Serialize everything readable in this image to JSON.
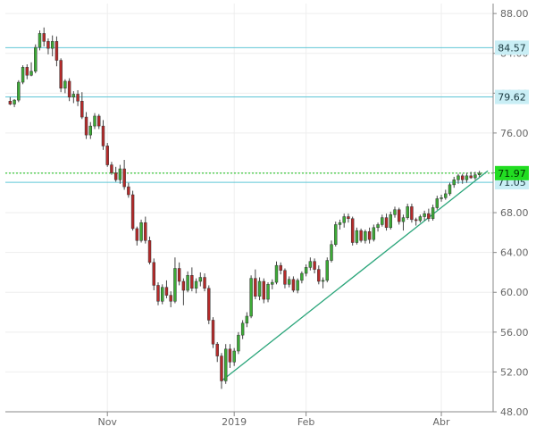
{
  "chart_data": {
    "type": "candlestick",
    "y_axis": {
      "side": "right",
      "ticks": [
        "88.00",
        "84.00",
        "80.00",
        "76.00",
        "72.00",
        "68.00",
        "64.00",
        "60.00",
        "56.00",
        "52.00",
        "48.00"
      ],
      "ylim": [
        48,
        89
      ]
    },
    "x_axis": {
      "ticks": [
        {
          "label": "Nov",
          "index": 23
        },
        {
          "label": "2019",
          "index": 53
        },
        {
          "label": "Feb",
          "index": 70
        },
        {
          "label": "Abr",
          "index": 102
        }
      ]
    },
    "grid": true,
    "colors": {
      "up": "#3caa36",
      "down": "#b52a2a",
      "level_line": "#5fc6d6",
      "trendline": "#2aa57a",
      "current_line": "#11c011",
      "grid": "#eeeeee",
      "axis": "#888888",
      "text": "#666666"
    },
    "horizontal_levels": [
      {
        "label": "84.57",
        "value": 84.57
      },
      {
        "label": "79.62",
        "value": 79.62
      },
      {
        "label": "71.05",
        "value": 71.05
      }
    ],
    "current_price": {
      "label": "71.97",
      "value": 71.97
    },
    "trendline": {
      "from": {
        "index": 50,
        "value": 51.1
      },
      "to": {
        "index": 113,
        "value": 72.2
      }
    },
    "candles": [
      [
        79.2,
        79.6,
        78.8,
        78.9
      ],
      [
        78.9,
        79.4,
        78.6,
        79.3
      ],
      [
        79.3,
        81.3,
        79.1,
        81.1
      ],
      [
        81.1,
        82.8,
        80.9,
        82.6
      ],
      [
        82.6,
        82.9,
        81.4,
        81.8
      ],
      [
        81.8,
        83.1,
        81.7,
        82.2
      ],
      [
        82.2,
        84.9,
        82.0,
        84.6
      ],
      [
        84.6,
        86.3,
        84.3,
        86.0
      ],
      [
        86.0,
        86.6,
        84.7,
        85.2
      ],
      [
        85.2,
        85.5,
        83.9,
        84.5
      ],
      [
        84.5,
        85.8,
        83.7,
        85.2
      ],
      [
        85.2,
        85.7,
        82.7,
        83.3
      ],
      [
        83.3,
        83.5,
        80.1,
        80.5
      ],
      [
        80.5,
        81.4,
        80.0,
        81.2
      ],
      [
        81.2,
        81.5,
        79.2,
        79.6
      ],
      [
        79.6,
        80.2,
        79.0,
        79.9
      ],
      [
        79.9,
        80.3,
        78.7,
        79.2
      ],
      [
        79.2,
        80.1,
        77.4,
        77.6
      ],
      [
        77.6,
        78.1,
        75.4,
        75.8
      ],
      [
        75.8,
        77.1,
        75.4,
        76.7
      ],
      [
        76.7,
        78.0,
        76.4,
        77.7
      ],
      [
        77.7,
        77.9,
        76.4,
        76.7
      ],
      [
        76.7,
        77.3,
        74.3,
        74.7
      ],
      [
        74.7,
        75.0,
        72.6,
        72.8
      ],
      [
        72.8,
        73.1,
        71.8,
        72.0
      ],
      [
        72.0,
        72.6,
        71.1,
        71.3
      ],
      [
        71.3,
        72.8,
        70.9,
        72.4
      ],
      [
        72.4,
        73.3,
        70.3,
        70.6
      ],
      [
        70.6,
        71.0,
        69.5,
        69.8
      ],
      [
        69.8,
        70.2,
        66.2,
        66.4
      ],
      [
        66.4,
        66.6,
        64.7,
        65.2
      ],
      [
        65.2,
        67.3,
        65.0,
        67.0
      ],
      [
        67.0,
        67.6,
        64.9,
        65.2
      ],
      [
        65.2,
        65.6,
        62.8,
        63.0
      ],
      [
        63.0,
        63.4,
        60.2,
        60.7
      ],
      [
        60.7,
        61.0,
        58.7,
        59.1
      ],
      [
        59.1,
        60.8,
        58.8,
        60.5
      ],
      [
        60.5,
        61.2,
        59.4,
        59.7
      ],
      [
        59.7,
        60.1,
        58.5,
        59.1
      ],
      [
        59.1,
        63.5,
        58.9,
        62.4
      ],
      [
        62.4,
        63.0,
        60.7,
        61.1
      ],
      [
        61.1,
        61.4,
        58.7,
        60.2
      ],
      [
        60.2,
        62.1,
        60.0,
        61.7
      ],
      [
        61.7,
        62.5,
        60.1,
        60.4
      ],
      [
        60.4,
        61.4,
        59.9,
        61.1
      ],
      [
        61.1,
        62.0,
        60.6,
        61.5
      ],
      [
        61.5,
        61.9,
        60.1,
        60.4
      ],
      [
        60.4,
        60.7,
        56.8,
        57.2
      ],
      [
        57.2,
        57.5,
        54.4,
        54.8
      ],
      [
        54.8,
        55.0,
        53.0,
        53.6
      ],
      [
        53.6,
        53.9,
        50.3,
        51.1
      ],
      [
        51.1,
        54.8,
        50.8,
        54.3
      ],
      [
        54.3,
        54.8,
        52.4,
        53.0
      ],
      [
        53.0,
        54.4,
        52.6,
        54.1
      ],
      [
        54.1,
        56.0,
        53.8,
        55.7
      ],
      [
        55.7,
        57.2,
        55.3,
        56.9
      ],
      [
        56.9,
        58.0,
        56.5,
        57.6
      ],
      [
        57.6,
        61.7,
        57.4,
        61.4
      ],
      [
        61.4,
        62.3,
        59.3,
        59.6
      ],
      [
        59.6,
        61.5,
        59.2,
        61.1
      ],
      [
        61.1,
        61.4,
        58.9,
        59.3
      ],
      [
        59.3,
        61.0,
        59.0,
        60.8
      ],
      [
        60.8,
        61.3,
        60.3,
        61.0
      ],
      [
        61.0,
        63.1,
        60.8,
        62.7
      ],
      [
        62.7,
        63.0,
        61.8,
        62.2
      ],
      [
        62.2,
        62.4,
        60.4,
        60.8
      ],
      [
        60.8,
        61.6,
        60.5,
        61.3
      ],
      [
        61.3,
        61.6,
        60.0,
        60.2
      ],
      [
        60.2,
        61.4,
        59.9,
        61.2
      ],
      [
        61.2,
        62.1,
        60.9,
        61.9
      ],
      [
        61.9,
        62.8,
        61.6,
        62.5
      ],
      [
        62.5,
        63.5,
        62.2,
        63.1
      ],
      [
        63.1,
        63.4,
        61.9,
        62.3
      ],
      [
        62.3,
        62.7,
        60.8,
        61.1
      ],
      [
        61.1,
        61.5,
        60.4,
        61.2
      ],
      [
        61.2,
        63.5,
        61.0,
        63.2
      ],
      [
        63.2,
        65.2,
        63.0,
        64.8
      ],
      [
        64.8,
        67.1,
        64.6,
        66.8
      ],
      [
        66.8,
        67.3,
        66.3,
        67.0
      ],
      [
        67.0,
        67.9,
        66.5,
        67.6
      ],
      [
        67.6,
        67.9,
        67.0,
        67.4
      ],
      [
        67.4,
        67.6,
        64.7,
        65.0
      ],
      [
        65.0,
        66.5,
        64.8,
        66.2
      ],
      [
        66.2,
        66.4,
        65.0,
        65.2
      ],
      [
        65.2,
        66.3,
        64.9,
        66.1
      ],
      [
        66.1,
        66.5,
        64.9,
        65.3
      ],
      [
        65.3,
        66.8,
        65.1,
        66.5
      ],
      [
        66.5,
        67.0,
        66.1,
        66.8
      ],
      [
        66.8,
        67.8,
        66.6,
        67.5
      ],
      [
        67.5,
        67.9,
        66.2,
        66.5
      ],
      [
        66.5,
        68.1,
        66.3,
        67.8
      ],
      [
        67.8,
        68.6,
        67.5,
        68.3
      ],
      [
        68.3,
        68.5,
        66.8,
        67.1
      ],
      [
        67.1,
        67.8,
        66.2,
        67.5
      ],
      [
        67.5,
        68.9,
        67.3,
        68.6
      ],
      [
        68.6,
        68.9,
        67.0,
        67.3
      ],
      [
        67.3,
        67.5,
        66.7,
        67.2
      ],
      [
        67.2,
        67.8,
        67.0,
        67.6
      ],
      [
        67.6,
        68.2,
        67.2,
        67.9
      ],
      [
        67.9,
        68.4,
        67.1,
        67.4
      ],
      [
        67.4,
        68.8,
        67.2,
        68.5
      ],
      [
        68.5,
        69.7,
        68.3,
        69.4
      ],
      [
        69.4,
        69.8,
        69.1,
        69.5
      ],
      [
        69.5,
        70.3,
        69.3,
        69.9
      ],
      [
        69.9,
        71.0,
        69.7,
        70.8
      ],
      [
        70.8,
        71.6,
        70.5,
        71.3
      ],
      [
        71.3,
        71.9,
        70.9,
        71.7
      ],
      [
        71.7,
        71.9,
        70.9,
        71.3
      ],
      [
        71.3,
        72.0,
        71.0,
        71.7
      ],
      [
        71.7,
        72.1,
        71.4,
        71.5
      ],
      [
        71.5,
        72.1,
        71.3,
        71.8
      ],
      [
        71.8,
        72.2,
        71.6,
        71.97
      ]
    ]
  }
}
